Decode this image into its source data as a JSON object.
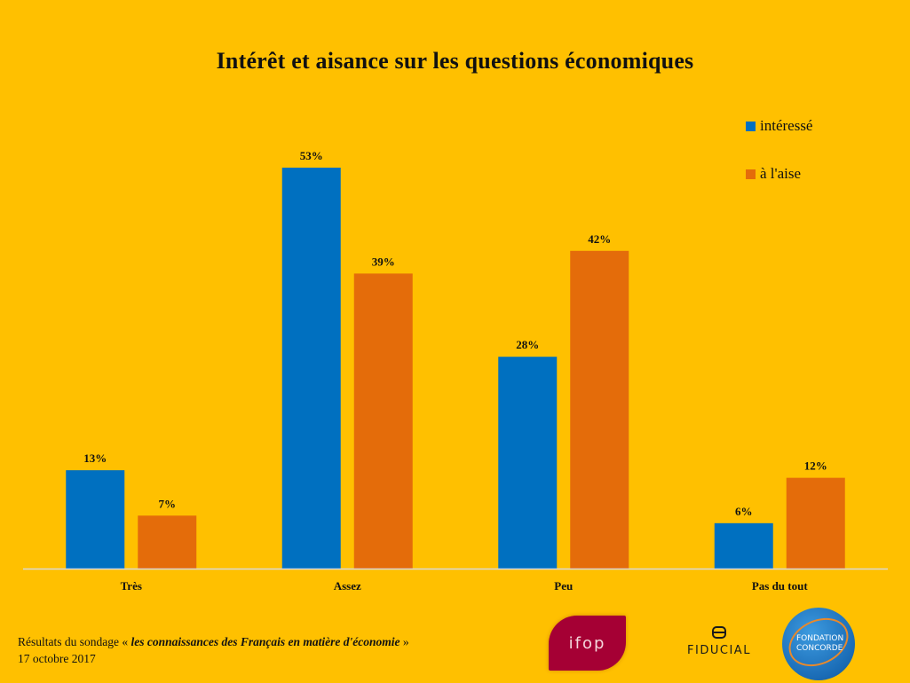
{
  "chart_data": {
    "type": "bar",
    "title": "Intérêt et aisance sur les questions économiques",
    "categories": [
      "Très",
      "Assez",
      "Peu",
      "Pas du tout"
    ],
    "series": [
      {
        "name": "intéressé",
        "color": "#0070C0",
        "values": [
          13,
          53,
          28,
          6
        ]
      },
      {
        "name": "à l'aise",
        "color": "#E46C0A",
        "values": [
          7,
          39,
          42,
          12
        ]
      }
    ],
    "value_suffix": "%",
    "xlabel": "",
    "ylabel": "",
    "ylim": [
      0,
      60
    ],
    "grid": false,
    "legend_position": "top-right"
  },
  "footer": {
    "prefix": "Résultats du sondage « ",
    "survey_title": "les connaissances des Français en matière d'économie",
    "suffix": " »",
    "date": "17 octobre 2017"
  },
  "logos": {
    "ifop": "ifop",
    "fiducial": "FIDUCIAL",
    "concorde_line1": "FONDATION",
    "concorde_line2": "CONCORDE"
  },
  "colors": {
    "background": "#FFC000",
    "axis": "#D9D9D9"
  }
}
